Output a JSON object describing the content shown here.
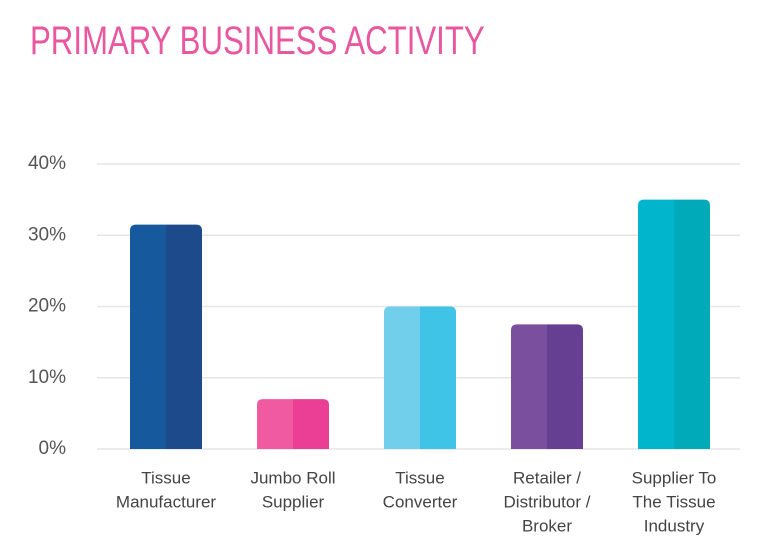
{
  "chart_data": {
    "type": "bar",
    "title": "PRIMARY BUSINESS ACTIVITY",
    "categories": [
      [
        "Tissue",
        "Manufacturer"
      ],
      [
        "Jumbo Roll",
        "Supplier"
      ],
      [
        "Tissue",
        "Converter"
      ],
      [
        "Retailer /",
        "Distributor /",
        "Broker"
      ],
      [
        "Supplier To",
        "The Tissue",
        "Industry"
      ]
    ],
    "values": [
      31.5,
      7,
      20,
      17.5,
      35
    ],
    "colors": [
      [
        "#16599c",
        "#1d4a8a"
      ],
      [
        "#f05aa0",
        "#ea3f94"
      ],
      [
        "#72cfec",
        "#3fc3e6"
      ],
      [
        "#7a4f9e",
        "#663f92"
      ],
      [
        "#00b5cc",
        "#00aab8"
      ]
    ],
    "ylim": [
      0,
      40
    ],
    "yticks": [
      {
        "value": 0,
        "label": "0%"
      },
      {
        "value": 10,
        "label": "10%"
      },
      {
        "value": 20,
        "label": "20%"
      },
      {
        "value": 30,
        "label": "30%"
      },
      {
        "value": 40,
        "label": "40%"
      }
    ],
    "grid": true
  }
}
